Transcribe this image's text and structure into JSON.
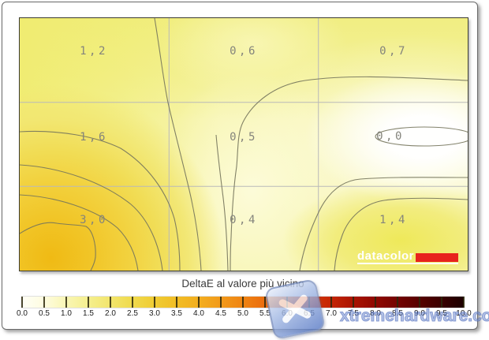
{
  "chart_data": {
    "type": "heatmap",
    "subtype": "contour-map",
    "title": "DeltaE al valore più vicino",
    "rows": 3,
    "cols": 3,
    "values": [
      [
        1.2,
        0.6,
        0.7
      ],
      [
        1.6,
        0.5,
        0.0
      ],
      [
        3.0,
        0.4,
        1.4
      ]
    ],
    "value_labels": [
      [
        "1,2",
        "0,6",
        "0,7"
      ],
      [
        "1,6",
        "0,5",
        "0,0"
      ],
      [
        "3,0",
        "0,4",
        "1,4"
      ]
    ],
    "peak_region": "bottom-left",
    "min_region": "middle-right",
    "grid": "3x3 light gray reference lines",
    "colorbar": {
      "min": 0.0,
      "max": 10.0,
      "step": 0.5,
      "tick_labels": [
        "0.0",
        "0.5",
        "1.0",
        "1.5",
        "2.0",
        "2.5",
        "3.0",
        "3.5",
        "4.0",
        "4.5",
        "5.0",
        "5.5",
        "6.0",
        "6.5",
        "7.0",
        "7.5",
        "8.0",
        "8.5",
        "9.0",
        "9.5",
        "10.0"
      ],
      "gradient_stops": [
        {
          "pos": 0,
          "color": "#fffff6"
        },
        {
          "pos": 5,
          "color": "#fefce0"
        },
        {
          "pos": 10,
          "color": "#f9f6b4"
        },
        {
          "pos": 15,
          "color": "#f5ef8e"
        },
        {
          "pos": 20,
          "color": "#f2e56c"
        },
        {
          "pos": 25,
          "color": "#f0da4c"
        },
        {
          "pos": 30,
          "color": "#f0cc33"
        },
        {
          "pos": 35,
          "color": "#f1bd25"
        },
        {
          "pos": 40,
          "color": "#f3ae1f"
        },
        {
          "pos": 45,
          "color": "#f29a1a"
        },
        {
          "pos": 50,
          "color": "#ef8413"
        },
        {
          "pos": 55,
          "color": "#eb6c0e"
        },
        {
          "pos": 60,
          "color": "#e35208"
        },
        {
          "pos": 65,
          "color": "#d73905"
        },
        {
          "pos": 70,
          "color": "#c42504"
        },
        {
          "pos": 75,
          "color": "#aa1402"
        },
        {
          "pos": 80,
          "color": "#8f0901"
        },
        {
          "pos": 85,
          "color": "#740301"
        },
        {
          "pos": 90,
          "color": "#570100"
        },
        {
          "pos": 95,
          "color": "#3a0000"
        },
        {
          "pos": 100,
          "color": "#1c0000"
        }
      ]
    }
  },
  "branding": {
    "name": "datacolor",
    "bar_color": "#e8231d"
  },
  "watermark": {
    "text": "xtremehardware.com"
  },
  "colors": {
    "contour_line": "#75755c",
    "grid_line": "#b9b9b9",
    "cell_label_text": "#84847c",
    "title_text": "#3c3c3c",
    "plot_border": "#3c3c32"
  }
}
